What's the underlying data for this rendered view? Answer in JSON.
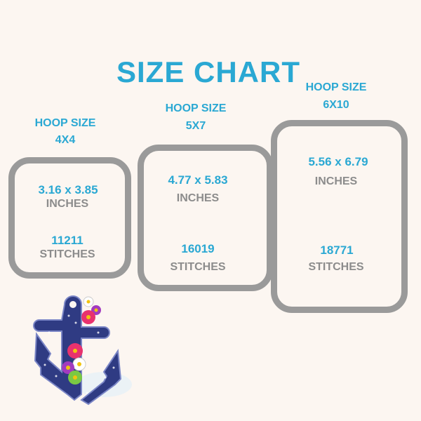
{
  "title": "SIZE CHART",
  "colors": {
    "accent": "#2aa8d3",
    "frame": "#9a9a9a",
    "unit_text": "#8c8c8c",
    "background": "#fcf6f1"
  },
  "hoops": [
    {
      "label": "HOOP SIZE",
      "size": "4X4",
      "dimensions": "3.16 x 3.85",
      "dimension_unit": "INCHES",
      "stitches": "11211",
      "stitch_unit": "STITCHES"
    },
    {
      "label": "HOOP SIZE",
      "size": "5X7",
      "dimensions": "4.77 x 5.83",
      "dimension_unit": "INCHES",
      "stitches": "16019",
      "stitch_unit": "STITCHES"
    },
    {
      "label": "HOOP SIZE",
      "size": "6X10",
      "dimensions": "5.56 x 6.79",
      "dimension_unit": "INCHES",
      "stitches": "18771",
      "stitch_unit": "STITCHES"
    }
  ],
  "image": {
    "icon": "anchor-with-flowers-icon"
  }
}
